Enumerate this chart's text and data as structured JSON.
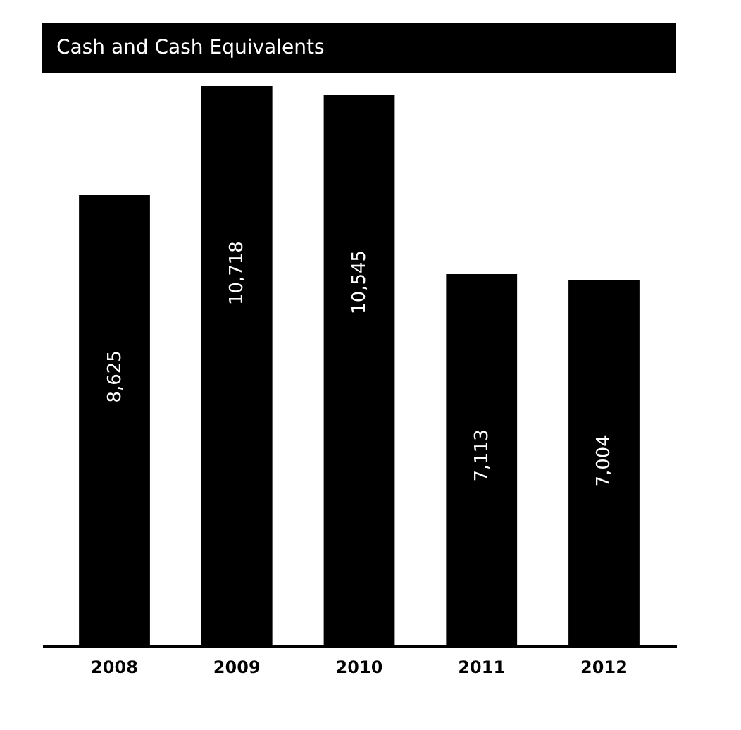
{
  "chart_data": {
    "type": "bar",
    "title": "Cash and Cash Equivalents",
    "categories": [
      "2008",
      "2009",
      "2010",
      "2011",
      "2012"
    ],
    "values": [
      8625,
      10718,
      10545,
      7113,
      7004
    ],
    "value_labels": [
      "8,625",
      "10,718",
      "10,545",
      "7,113",
      "7,004"
    ],
    "color": "#000000",
    "ylim": [
      0,
      10800
    ]
  }
}
